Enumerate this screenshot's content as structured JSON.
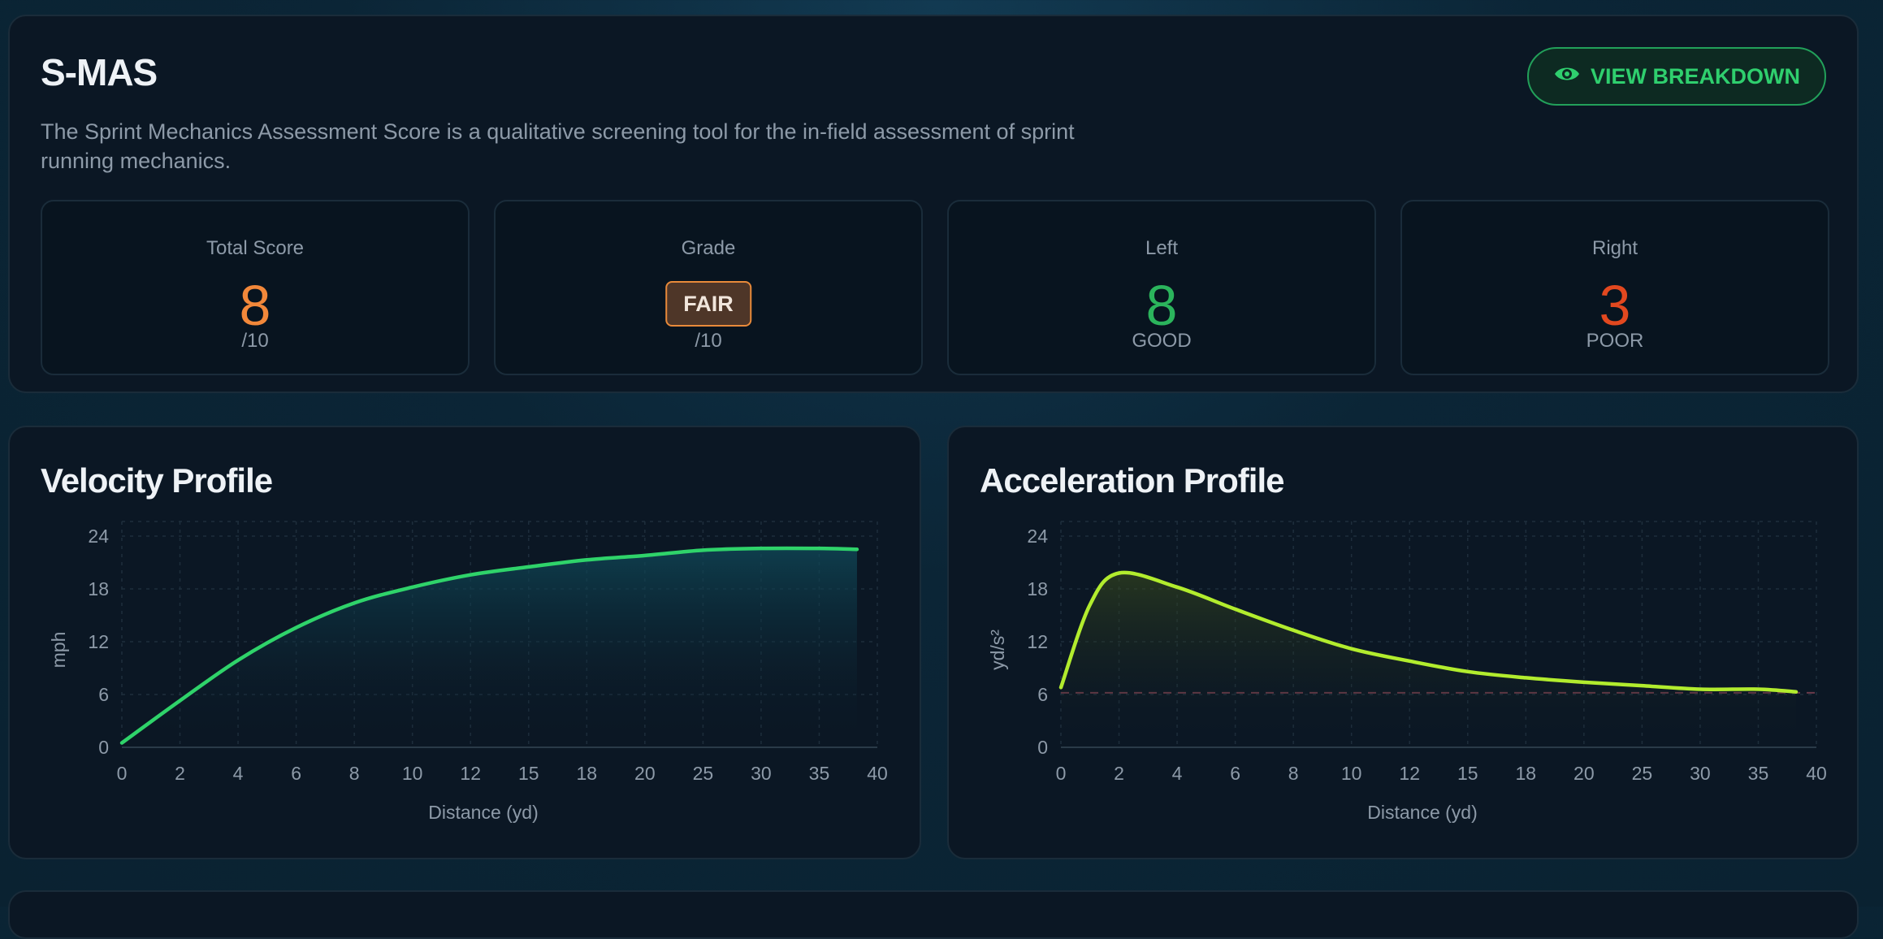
{
  "smas": {
    "title": "S-MAS",
    "description": "The Sprint Mechanics Assessment Score is a qualitative screening tool for the in-field assessment of sprint running mechanics.",
    "button_label": "VIEW BREAKDOWN",
    "button_icon": "eye-icon",
    "total": {
      "label": "Total Score",
      "value": "8",
      "sub": "/10",
      "color": "#f2883a"
    },
    "grade": {
      "label": "Grade",
      "value": "FAIR",
      "sub": "/10",
      "color": "#e88a3a"
    },
    "left": {
      "label": "Left",
      "value": "8",
      "sub": "GOOD",
      "color": "#2bb45c"
    },
    "right": {
      "label": "Right",
      "value": "3",
      "sub": "POOR",
      "color": "#e2481f"
    }
  },
  "velocity": {
    "title": "Velocity Profile"
  },
  "acceleration": {
    "title": "Acceleration Profile"
  },
  "chart_data": [
    {
      "type": "area",
      "title": "Velocity Profile",
      "xlabel": "Distance (yd)",
      "ylabel": "mph",
      "x_ticks": [
        "0",
        "2",
        "4",
        "6",
        "8",
        "10",
        "12",
        "15",
        "18",
        "20",
        "25",
        "30",
        "35",
        "40"
      ],
      "y_ticks": [
        0,
        6,
        12,
        18,
        24
      ],
      "ylim": [
        0,
        24
      ],
      "color": "#2fd36a",
      "grid": true,
      "series": [
        {
          "x_index": [
            0,
            1,
            2,
            3,
            4,
            5,
            6,
            7,
            8,
            9,
            10,
            11,
            12,
            12.65
          ],
          "values": [
            0.5,
            5.3,
            9.9,
            13.6,
            16.4,
            18.2,
            19.6,
            20.5,
            21.3,
            21.8,
            22.4,
            22.6,
            22.6,
            22.5
          ]
        }
      ]
    },
    {
      "type": "area",
      "title": "Acceleration Profile",
      "xlabel": "Distance (yd)",
      "ylabel": "yd/s²",
      "x_ticks": [
        "0",
        "2",
        "4",
        "6",
        "8",
        "10",
        "12",
        "15",
        "18",
        "20",
        "25",
        "30",
        "35",
        "40"
      ],
      "y_ticks": [
        0,
        6,
        12,
        18,
        24
      ],
      "ylim": [
        0,
        24
      ],
      "color": "#b2ec2e",
      "reference_line": 6.2,
      "reference_color": "#6b3a4a",
      "grid": true,
      "series": [
        {
          "x_index": [
            0,
            0.5,
            1,
            2,
            3,
            4,
            5,
            6,
            7,
            8,
            9,
            10,
            11,
            12,
            12.65
          ],
          "values": [
            6.8,
            16.2,
            19.8,
            18.2,
            15.7,
            13.3,
            11.2,
            9.8,
            8.6,
            7.9,
            7.4,
            7.0,
            6.6,
            6.6,
            6.3
          ]
        }
      ]
    }
  ]
}
